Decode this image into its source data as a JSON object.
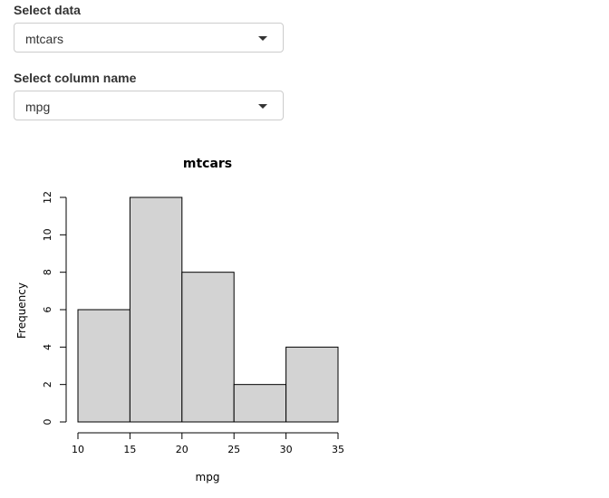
{
  "controls": {
    "data_select": {
      "label": "Select data",
      "value": "mtcars"
    },
    "column_select": {
      "label": "Select column name",
      "value": "mpg"
    }
  },
  "chart_data": {
    "type": "bar",
    "title": "mtcars",
    "xlabel": "mpg",
    "ylabel": "Frequency",
    "bins": [
      [
        10,
        15
      ],
      [
        15,
        20
      ],
      [
        20,
        25
      ],
      [
        25,
        30
      ],
      [
        30,
        35
      ]
    ],
    "values": [
      6,
      12,
      8,
      2,
      4
    ],
    "xlim": [
      10,
      35
    ],
    "ylim": [
      0,
      12
    ],
    "x_ticks": [
      10,
      15,
      20,
      25,
      30,
      35
    ],
    "y_ticks": [
      0,
      2,
      4,
      6,
      8,
      10,
      12
    ],
    "bar_color": "#d3d3d3",
    "grid": false
  }
}
